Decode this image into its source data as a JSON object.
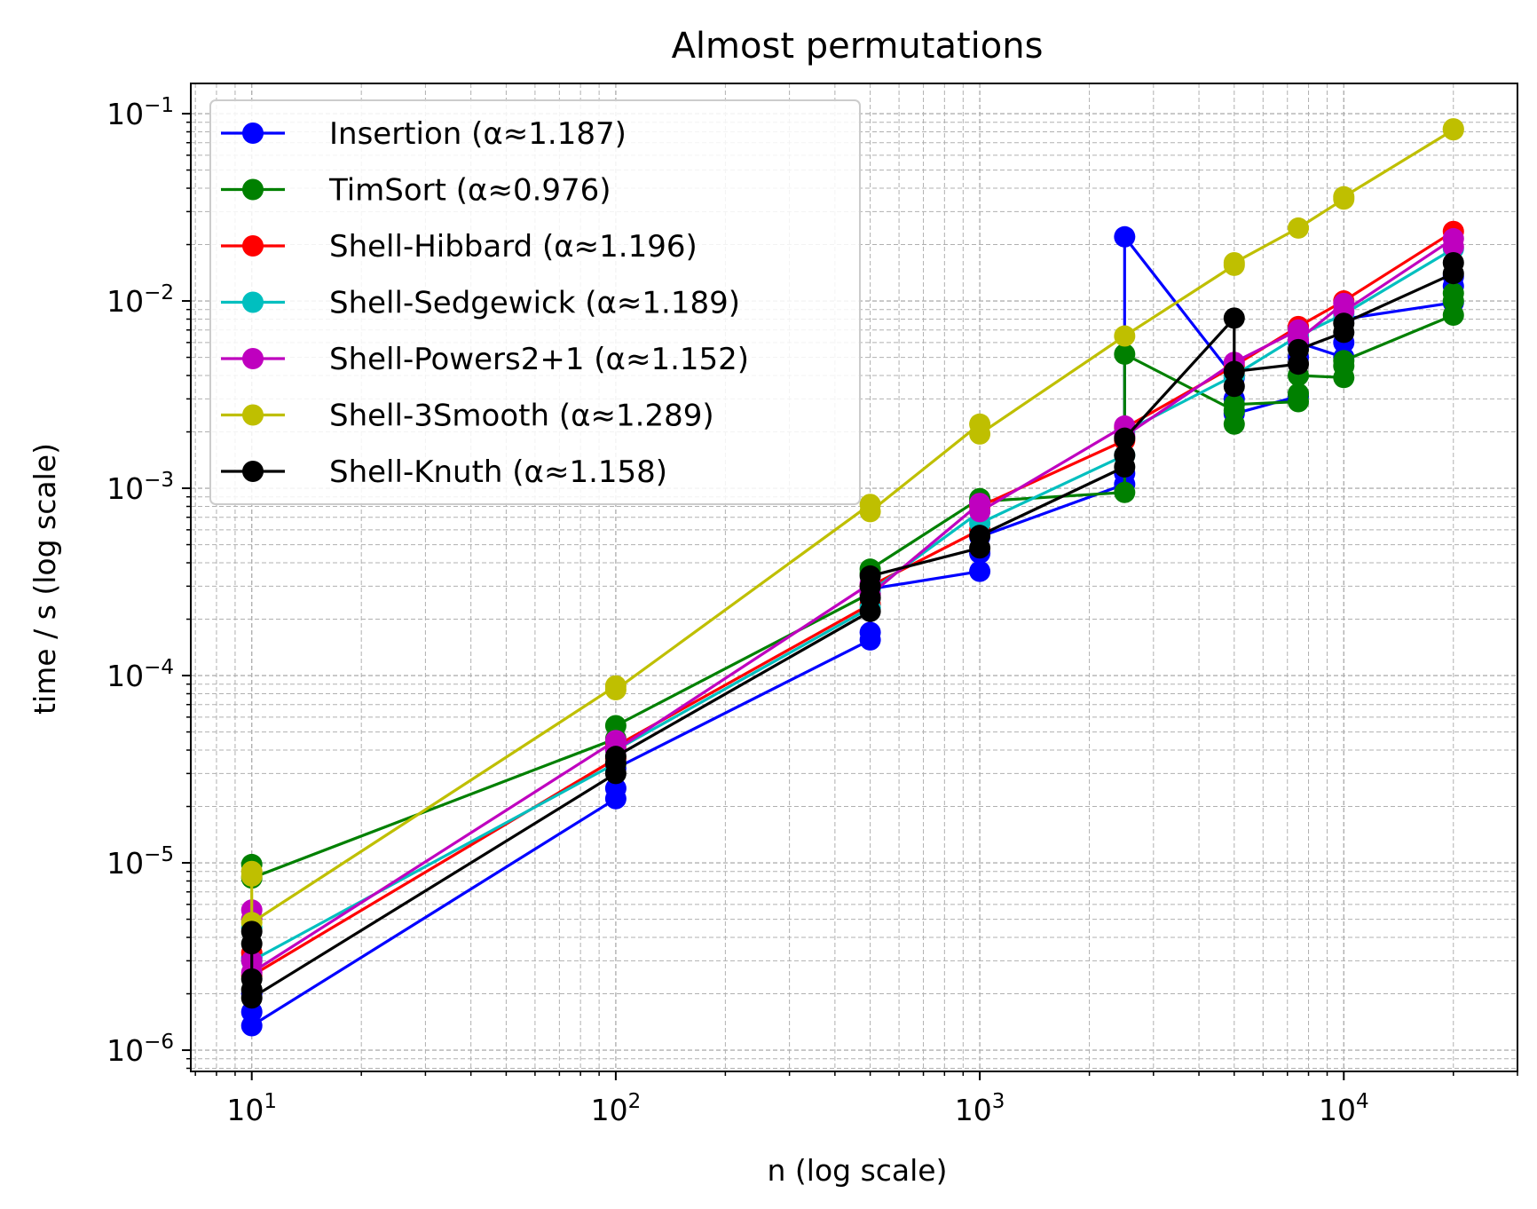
{
  "chart_data": {
    "type": "line",
    "title": "Almost permutations",
    "xlabel": "n (log scale)",
    "ylabel": "time / s (log scale)",
    "xscale": "log",
    "yscale": "log",
    "xlim": [
      6.8,
      30000
    ],
    "ylim": [
      7.7e-07,
      0.145
    ],
    "grid": true,
    "legend_position": "upper-left",
    "x_tick_labels": [
      {
        "value": 10,
        "base": "10",
        "exp": "1"
      },
      {
        "value": 100,
        "base": "10",
        "exp": "2"
      },
      {
        "value": 1000,
        "base": "10",
        "exp": "3"
      },
      {
        "value": 10000,
        "base": "10",
        "exp": "4"
      }
    ],
    "y_tick_labels": [
      {
        "value": 1e-06,
        "base": "10",
        "exp": "−6"
      },
      {
        "value": 1e-05,
        "base": "10",
        "exp": "−5"
      },
      {
        "value": 0.0001,
        "base": "10",
        "exp": "−4"
      },
      {
        "value": 0.001,
        "base": "10",
        "exp": "−3"
      },
      {
        "value": 0.01,
        "base": "10",
        "exp": "−2"
      },
      {
        "value": 0.1,
        "base": "10",
        "exp": "−1"
      }
    ],
    "series": [
      {
        "name": "Insertion (α≈1.187)",
        "color": "#0000ff",
        "points": [
          [
            10,
            3.1e-06
          ],
          [
            10,
            2e-06
          ],
          [
            10,
            1.6e-06
          ],
          [
            10,
            1.35e-06
          ],
          [
            100,
            2.2e-05
          ],
          [
            100,
            2.5e-05
          ],
          [
            100,
            3.2e-05
          ],
          [
            500,
            0.000155
          ],
          [
            500,
            0.00017
          ],
          [
            500,
            0.00029
          ],
          [
            1000,
            0.00036
          ],
          [
            1000,
            0.00045
          ],
          [
            1000,
            0.00055
          ],
          [
            2500,
            0.00105
          ],
          [
            2500,
            0.0012
          ],
          [
            2500,
            0.022
          ],
          [
            5000,
            0.0039
          ],
          [
            5000,
            0.003
          ],
          [
            5000,
            0.0025
          ],
          [
            7500,
            0.0031
          ],
          [
            7500,
            0.005
          ],
          [
            7500,
            0.006
          ],
          [
            10000,
            0.005
          ],
          [
            10000,
            0.006
          ],
          [
            10000,
            0.008
          ],
          [
            20000,
            0.0098
          ],
          [
            20000,
            0.012
          ],
          [
            20000,
            0.0135
          ]
        ]
      },
      {
        "name": "TimSort (α≈0.976)",
        "color": "#008000",
        "points": [
          [
            10,
            9.8e-06
          ],
          [
            10,
            8.3e-06
          ],
          [
            100,
            4.6e-05
          ],
          [
            100,
            5.4e-05
          ],
          [
            500,
            0.000275
          ],
          [
            500,
            0.00035
          ],
          [
            500,
            0.00037
          ],
          [
            1000,
            0.00088
          ],
          [
            1000,
            0.00085
          ],
          [
            2500,
            0.00095
          ],
          [
            2500,
            0.0052
          ],
          [
            5000,
            0.0026
          ],
          [
            5000,
            0.0022
          ],
          [
            5000,
            0.0028
          ],
          [
            7500,
            0.0029
          ],
          [
            7500,
            0.0032
          ],
          [
            7500,
            0.004
          ],
          [
            10000,
            0.0039
          ],
          [
            10000,
            0.0045
          ],
          [
            10000,
            0.0048
          ],
          [
            20000,
            0.0084
          ],
          [
            20000,
            0.01
          ],
          [
            20000,
            0.011
          ]
        ]
      },
      {
        "name": "Shell-Hibbard (α≈1.196)",
        "color": "#ff0000",
        "points": [
          [
            10,
            3.3e-06
          ],
          [
            10,
            2.5e-06
          ],
          [
            100,
            3.6e-05
          ],
          [
            100,
            4.2e-05
          ],
          [
            500,
            0.00024
          ],
          [
            500,
            0.0003
          ],
          [
            1000,
            0.0006
          ],
          [
            1000,
            0.0008
          ],
          [
            2500,
            0.0018
          ],
          [
            2500,
            0.0021
          ],
          [
            5000,
            0.0045
          ],
          [
            7500,
            0.0073
          ],
          [
            10000,
            0.01
          ],
          [
            20000,
            0.0235
          ]
        ]
      },
      {
        "name": "Shell-Sedgewick (α≈1.189)",
        "color": "#00bfbf",
        "points": [
          [
            10,
            4.5e-06
          ],
          [
            10,
            3e-06
          ],
          [
            100,
            3.4e-05
          ],
          [
            100,
            4e-05
          ],
          [
            500,
            0.00023
          ],
          [
            500,
            0.00028
          ],
          [
            1000,
            0.00075
          ],
          [
            1000,
            0.00065
          ],
          [
            2500,
            0.0015
          ],
          [
            2500,
            0.002
          ],
          [
            5000,
            0.004
          ],
          [
            7500,
            0.0065
          ],
          [
            10000,
            0.0085
          ],
          [
            20000,
            0.019
          ]
        ]
      },
      {
        "name": "Shell-Powers2+1 (α≈1.152)",
        "color": "#bf00bf",
        "points": [
          [
            10,
            5.6e-06
          ],
          [
            10,
            5e-06
          ],
          [
            10,
            3e-06
          ],
          [
            10,
            2.6e-06
          ],
          [
            100,
            4.5e-05
          ],
          [
            100,
            4e-05
          ],
          [
            500,
            0.00031
          ],
          [
            500,
            0.00027
          ],
          [
            1000,
            0.00083
          ],
          [
            1000,
            0.00075
          ],
          [
            2500,
            0.00215
          ],
          [
            2500,
            0.0019
          ],
          [
            5000,
            0.0047
          ],
          [
            7500,
            0.007
          ],
          [
            7500,
            0.0062
          ],
          [
            10000,
            0.0097
          ],
          [
            10000,
            0.0088
          ],
          [
            20000,
            0.0215
          ],
          [
            20000,
            0.0195
          ]
        ]
      },
      {
        "name": "Shell-3Smooth (α≈1.289)",
        "color": "#bfbf00",
        "points": [
          [
            10,
            9e-06
          ],
          [
            10,
            8.5e-06
          ],
          [
            10,
            4.8e-06
          ],
          [
            100,
            8.8e-05
          ],
          [
            100,
            8.4e-05
          ],
          [
            500,
            0.00082
          ],
          [
            500,
            0.00075
          ],
          [
            1000,
            0.0022
          ],
          [
            1000,
            0.00195
          ],
          [
            2500,
            0.0065
          ],
          [
            5000,
            0.0155
          ],
          [
            5000,
            0.016
          ],
          [
            7500,
            0.0245
          ],
          [
            10000,
            0.035
          ],
          [
            10000,
            0.036
          ],
          [
            20000,
            0.082
          ],
          [
            20000,
            0.083
          ]
        ]
      },
      {
        "name": "Shell-Knuth (α≈1.158)",
        "color": "#000000",
        "points": [
          [
            10,
            4.3e-06
          ],
          [
            10,
            3.7e-06
          ],
          [
            10,
            2.4e-06
          ],
          [
            10,
            2.1e-06
          ],
          [
            10,
            1.9e-06
          ],
          [
            100,
            3e-05
          ],
          [
            100,
            3.4e-05
          ],
          [
            100,
            3.7e-05
          ],
          [
            500,
            0.00022
          ],
          [
            500,
            0.00026
          ],
          [
            500,
            0.0003
          ],
          [
            500,
            0.00034
          ],
          [
            1000,
            0.00048
          ],
          [
            1000,
            0.00056
          ],
          [
            2500,
            0.0013
          ],
          [
            2500,
            0.0015
          ],
          [
            2500,
            0.00185
          ],
          [
            5000,
            0.0081
          ],
          [
            5000,
            0.0035
          ],
          [
            5000,
            0.0042
          ],
          [
            7500,
            0.0046
          ],
          [
            7500,
            0.0055
          ],
          [
            10000,
            0.0068
          ],
          [
            10000,
            0.0076
          ],
          [
            20000,
            0.014
          ],
          [
            20000,
            0.016
          ]
        ]
      }
    ]
  }
}
